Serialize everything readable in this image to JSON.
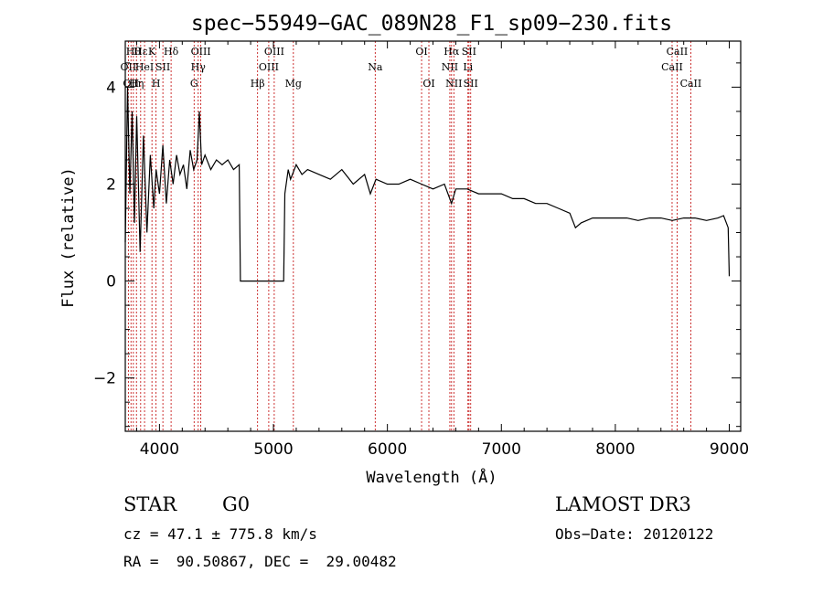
{
  "chart_data": {
    "type": "line",
    "title": "spec−55949−GAC_089N28_F1_sp09−230.fits",
    "xlabel": "Wavelength (Å)",
    "ylabel": "Flux (relative)",
    "xlim": [
      3700,
      9100
    ],
    "ylim": [
      -3.1,
      4.95
    ],
    "xticks": [
      4000,
      5000,
      6000,
      7000,
      8000,
      9000
    ],
    "xtick_labels": [
      "4000",
      "5000",
      "6000",
      "7000",
      "8000",
      "9000"
    ],
    "yticks": [
      -2,
      0,
      2,
      4
    ],
    "ytick_labels": [
      "−2",
      "0",
      "2",
      "4"
    ],
    "series": [
      {
        "name": "spectrum",
        "x": [
          3700,
          3720,
          3740,
          3760,
          3780,
          3800,
          3830,
          3860,
          3890,
          3920,
          3950,
          3970,
          4000,
          4030,
          4060,
          4090,
          4120,
          4150,
          4180,
          4210,
          4240,
          4270,
          4300,
          4330,
          4350,
          4370,
          4400,
          4450,
          4500,
          4550,
          4600,
          4650,
          4700,
          4710,
          4800,
          4900,
          5000,
          5090,
          5100,
          5130,
          5150,
          5200,
          5250,
          5300,
          5400,
          5500,
          5600,
          5700,
          5800,
          5850,
          5900,
          6000,
          6100,
          6200,
          6300,
          6400,
          6500,
          6563,
          6600,
          6700,
          6800,
          6900,
          7000,
          7100,
          7200,
          7300,
          7400,
          7500,
          7600,
          7650,
          7700,
          7800,
          7900,
          8000,
          8100,
          8200,
          8300,
          8400,
          8500,
          8600,
          8700,
          8800,
          8900,
          8950,
          8990,
          9000
        ],
        "y": [
          0.8,
          4.0,
          1.8,
          3.5,
          1.2,
          3.4,
          0.6,
          3.0,
          1.0,
          2.6,
          1.5,
          2.3,
          1.8,
          2.8,
          1.6,
          2.5,
          2.0,
          2.6,
          2.2,
          2.4,
          1.9,
          2.7,
          2.3,
          2.5,
          3.5,
          2.4,
          2.6,
          2.3,
          2.5,
          2.4,
          2.5,
          2.3,
          2.4,
          0.0,
          0.0,
          0.0,
          0.0,
          0.0,
          1.8,
          2.3,
          2.1,
          2.4,
          2.2,
          2.3,
          2.2,
          2.1,
          2.3,
          2.0,
          2.2,
          1.8,
          2.1,
          2.0,
          2.0,
          2.1,
          2.0,
          1.9,
          2.0,
          1.6,
          1.9,
          1.9,
          1.8,
          1.8,
          1.8,
          1.7,
          1.7,
          1.6,
          1.6,
          1.5,
          1.4,
          1.1,
          1.2,
          1.3,
          1.3,
          1.3,
          1.3,
          1.25,
          1.3,
          1.3,
          1.25,
          1.3,
          1.3,
          1.25,
          1.3,
          1.35,
          1.1,
          0.1
        ]
      }
    ],
    "lines": [
      {
        "wl": 3727,
        "label": "OII",
        "row": 1
      },
      {
        "wl": 3750,
        "label": "OII",
        "row": 2
      },
      {
        "wl": 3771,
        "label": "Hθ",
        "row": 0
      },
      {
        "wl": 3798,
        "label": "Hη",
        "row": 2
      },
      {
        "wl": 3835,
        "label": "Hε",
        "row": 0
      },
      {
        "wl": 3869,
        "label": "HeI",
        "row": 1
      },
      {
        "wl": 3934,
        "label": "K",
        "row": 0
      },
      {
        "wl": 3970,
        "label": "H",
        "row": 2
      },
      {
        "wl": 4030,
        "label": "SII",
        "row": 1
      },
      {
        "wl": 4102,
        "label": "Hδ",
        "row": 0
      },
      {
        "wl": 4304,
        "label": "G",
        "row": 2
      },
      {
        "wl": 4340,
        "label": "Hγ",
        "row": 1
      },
      {
        "wl": 4363,
        "label": "OIII",
        "row": 0
      },
      {
        "wl": 4861,
        "label": "Hβ",
        "row": 2
      },
      {
        "wl": 4959,
        "label": "OIII",
        "row": 1
      },
      {
        "wl": 5007,
        "label": "OIII",
        "row": 0
      },
      {
        "wl": 5175,
        "label": "Mg",
        "row": 2
      },
      {
        "wl": 5893,
        "label": "Na",
        "row": 1
      },
      {
        "wl": 6300,
        "label": "OI",
        "row": 0
      },
      {
        "wl": 6364,
        "label": "OI",
        "row": 2
      },
      {
        "wl": 6548,
        "label": "NII",
        "row": 1
      },
      {
        "wl": 6563,
        "label": "Hα",
        "row": 0
      },
      {
        "wl": 6583,
        "label": "NII",
        "row": 2
      },
      {
        "wl": 6707,
        "label": "Li",
        "row": 1
      },
      {
        "wl": 6716,
        "label": "SII",
        "row": 0
      },
      {
        "wl": 6731,
        "label": "SII",
        "row": 2
      },
      {
        "wl": 8498,
        "label": "CaII",
        "row": 1
      },
      {
        "wl": 8542,
        "label": "CaII",
        "row": 0
      },
      {
        "wl": 8662,
        "label": "CaII",
        "row": 2
      }
    ]
  },
  "info": {
    "class": "STAR",
    "subclass": "G0",
    "survey": "LAMOST DR3",
    "cz": "cz = 47.1 ± 775.8 km/s",
    "obs_date": "Obs−Date: 20120122",
    "coords": "RA =  90.50867, DEC =  29.00482"
  },
  "colors": {
    "line_marker": "#c00000",
    "spectrum": "#000000",
    "axis": "#000000"
  }
}
